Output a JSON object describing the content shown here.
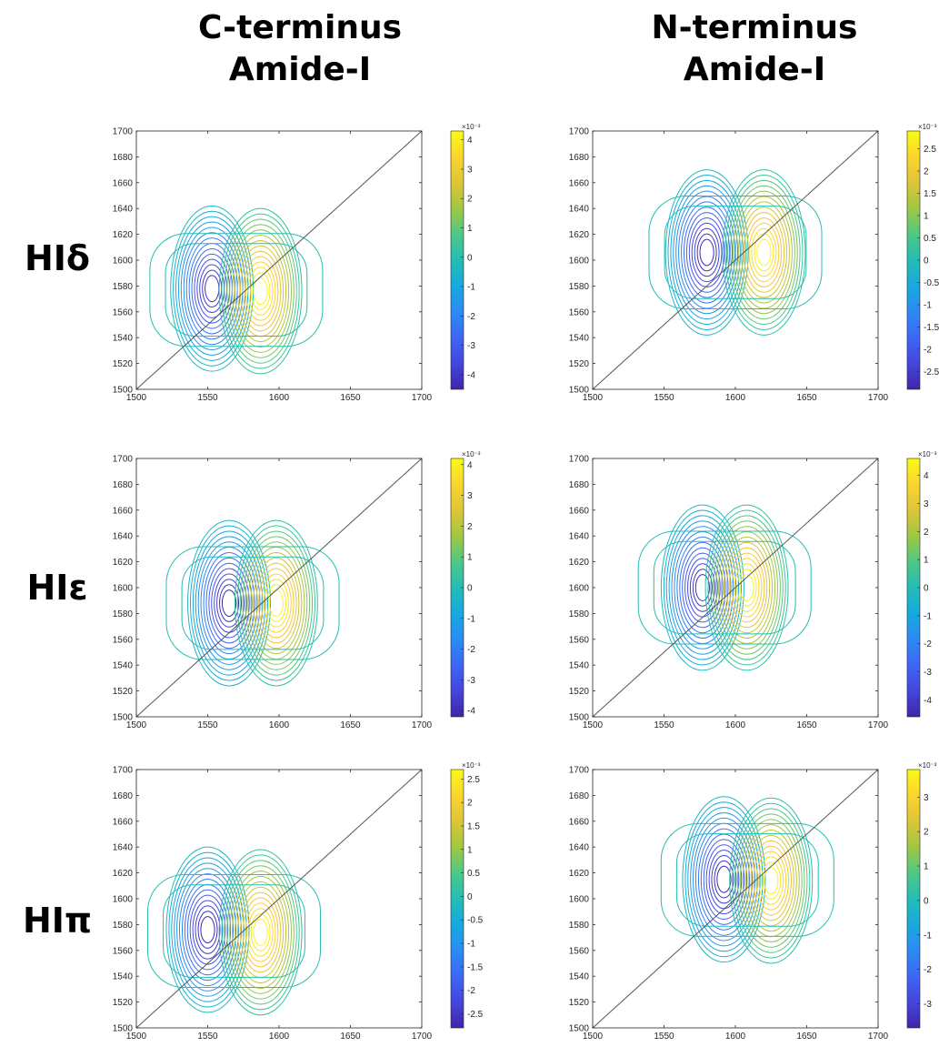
{
  "column_titles": [
    {
      "line1": "C-terminus",
      "line2": "Amide-I"
    },
    {
      "line1": "N-terminus",
      "line2": "Amide-I"
    }
  ],
  "row_labels": [
    "HIδ",
    "HIε",
    "HIπ"
  ],
  "chart_data": [
    {
      "type": "contour",
      "row": "HIδ",
      "column": "C-terminus Amide-I",
      "xlim": [
        1500,
        1700
      ],
      "ylim": [
        1500,
        1700
      ],
      "xticks": [
        1500,
        1550,
        1600,
        1650,
        1700
      ],
      "yticks": [
        1500,
        1520,
        1540,
        1560,
        1580,
        1600,
        1620,
        1640,
        1660,
        1680,
        1700
      ],
      "diagonal": true,
      "negative_peak": {
        "x": 1553,
        "y": 1578,
        "amplitude": -4.3
      },
      "positive_peak": {
        "x": 1587,
        "y": 1576,
        "amplitude": 4.3
      },
      "colorbar": {
        "min": -4.5,
        "max": 4.3,
        "ticks": [
          4,
          3,
          2,
          1,
          0,
          -1,
          -2,
          -3,
          -4
        ],
        "exponent": "×10⁻³"
      }
    },
    {
      "type": "contour",
      "row": "HIδ",
      "column": "N-terminus Amide-I",
      "xlim": [
        1500,
        1700
      ],
      "ylim": [
        1500,
        1700
      ],
      "xticks": [
        1500,
        1550,
        1600,
        1650,
        1700
      ],
      "yticks": [
        1500,
        1520,
        1540,
        1560,
        1580,
        1600,
        1620,
        1640,
        1660,
        1680,
        1700
      ],
      "diagonal": true,
      "negative_peak": {
        "x": 1580,
        "y": 1606,
        "amplitude": -2.9
      },
      "positive_peak": {
        "x": 1620,
        "y": 1606,
        "amplitude": 2.9
      },
      "colorbar": {
        "min": -2.9,
        "max": 2.9,
        "ticks": [
          2.5,
          2,
          1.5,
          1,
          0.5,
          0,
          -0.5,
          -1,
          -1.5,
          -2,
          -2.5
        ],
        "exponent": "×10⁻³"
      }
    },
    {
      "type": "contour",
      "row": "HIε",
      "column": "C-terminus Amide-I",
      "xlim": [
        1500,
        1700
      ],
      "ylim": [
        1500,
        1700
      ],
      "xticks": [
        1500,
        1550,
        1600,
        1650,
        1700
      ],
      "yticks": [
        1500,
        1520,
        1540,
        1560,
        1580,
        1600,
        1620,
        1640,
        1660,
        1680,
        1700
      ],
      "diagonal": true,
      "negative_peak": {
        "x": 1565,
        "y": 1588,
        "amplitude": -4.2
      },
      "positive_peak": {
        "x": 1598,
        "y": 1588,
        "amplitude": 4.2
      },
      "colorbar": {
        "min": -4.2,
        "max": 4.2,
        "ticks": [
          4,
          3,
          2,
          1,
          0,
          -1,
          -2,
          -3,
          -4
        ],
        "exponent": "×10⁻³"
      }
    },
    {
      "type": "contour",
      "row": "HIε",
      "column": "N-terminus Amide-I",
      "xlim": [
        1500,
        1700
      ],
      "ylim": [
        1500,
        1700
      ],
      "xticks": [
        1500,
        1550,
        1600,
        1650,
        1700
      ],
      "yticks": [
        1500,
        1520,
        1540,
        1560,
        1580,
        1600,
        1620,
        1640,
        1660,
        1680,
        1700
      ],
      "diagonal": true,
      "negative_peak": {
        "x": 1577,
        "y": 1600,
        "amplitude": -4.5
      },
      "positive_peak": {
        "x": 1608,
        "y": 1600,
        "amplitude": 4.6
      },
      "colorbar": {
        "min": -4.6,
        "max": 4.6,
        "ticks": [
          4,
          3,
          2,
          1,
          0,
          -1,
          -2,
          -3,
          -4
        ],
        "exponent": "×10⁻³"
      }
    },
    {
      "type": "contour",
      "row": "HIπ",
      "column": "C-terminus Amide-I",
      "xlim": [
        1500,
        1700
      ],
      "ylim": [
        1500,
        1700
      ],
      "xticks": [
        1500,
        1550,
        1600,
        1650,
        1700
      ],
      "yticks": [
        1500,
        1520,
        1540,
        1560,
        1580,
        1600,
        1620,
        1640,
        1660,
        1680,
        1700
      ],
      "diagonal": true,
      "negative_peak": {
        "x": 1550,
        "y": 1576,
        "amplitude": -2.8
      },
      "positive_peak": {
        "x": 1587,
        "y": 1574,
        "amplitude": 2.7
      },
      "colorbar": {
        "min": -2.8,
        "max": 2.7,
        "ticks": [
          2.5,
          2,
          1.5,
          1,
          0.5,
          0,
          -0.5,
          -1,
          -1.5,
          -2,
          -2.5
        ],
        "exponent": "×10⁻³"
      }
    },
    {
      "type": "contour",
      "row": "HIπ",
      "column": "N-terminus Amide-I",
      "xlim": [
        1500,
        1700
      ],
      "ylim": [
        1500,
        1700
      ],
      "xticks": [
        1500,
        1550,
        1600,
        1650,
        1700
      ],
      "yticks": [
        1500,
        1520,
        1540,
        1560,
        1580,
        1600,
        1620,
        1640,
        1660,
        1680,
        1700
      ],
      "diagonal": true,
      "negative_peak": {
        "x": 1592,
        "y": 1615,
        "amplitude": -3.7
      },
      "positive_peak": {
        "x": 1625,
        "y": 1614,
        "amplitude": 3.8
      },
      "colorbar": {
        "min": -3.7,
        "max": 3.8,
        "ticks": [
          3,
          2,
          1,
          0,
          -1,
          -2,
          -3
        ],
        "exponent": "×10⁻³"
      }
    }
  ]
}
